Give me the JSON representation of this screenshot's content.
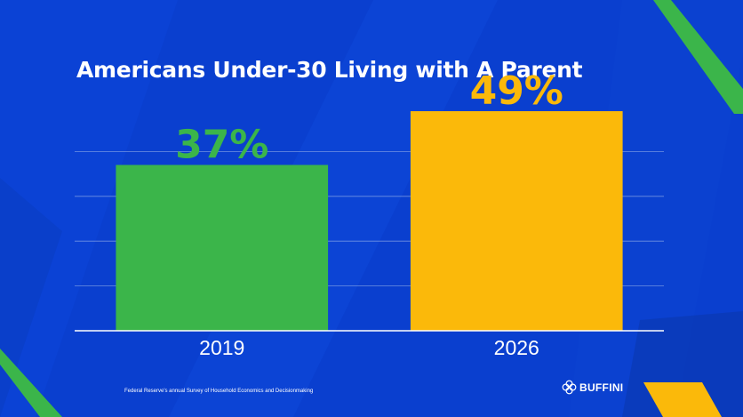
{
  "colors": {
    "background": "#0a3fcf",
    "bar_2019": "#3bb54a",
    "bar_2026": "#fbb90a",
    "label_2019": "#3bb54a",
    "label_2026": "#fbb90a",
    "gridline": "#8aa6e6",
    "axis": "#ffffff",
    "accent_stripe": "#3bb54a",
    "corner_stripe": "#fbb90a"
  },
  "chart_data": {
    "type": "bar",
    "title": "Americans Under-30 Living with A Parent",
    "categories": [
      "2019",
      "2026"
    ],
    "values": [
      37,
      49
    ],
    "value_labels": [
      "37%",
      "49%"
    ],
    "ylim": [
      0,
      50
    ],
    "grid": true,
    "xlabel": "",
    "ylabel": ""
  },
  "footer": {
    "source": "Federal Reserve's annual Survey of Household Economics and Decisionmaking"
  },
  "brand": {
    "name": "BUFFINI",
    "icon": "flower-logo-icon"
  }
}
